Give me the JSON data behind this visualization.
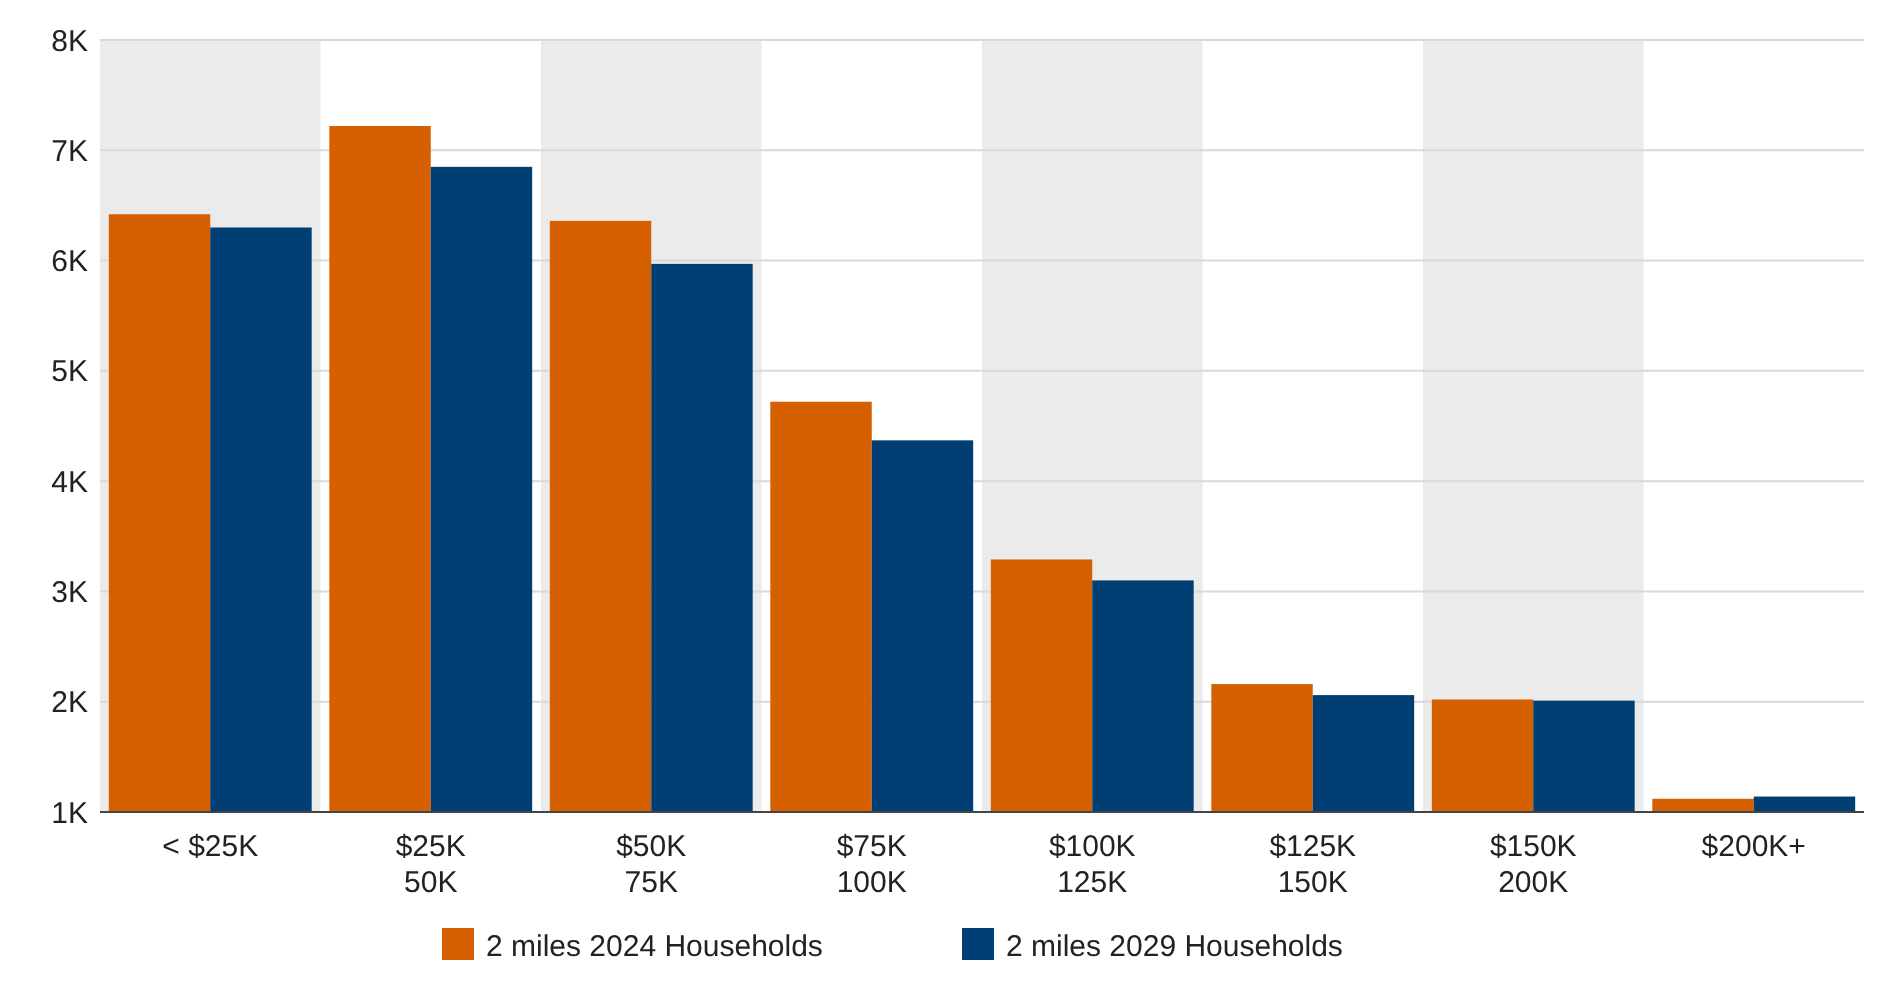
{
  "chart_data": {
    "type": "bar",
    "categories": [
      "< $25K",
      "$25K\n50K",
      "$50K\n75K",
      "$75K\n100K",
      "$100K\n125K",
      "$125K\n150K",
      "$150K\n200K",
      "$200K+"
    ],
    "series": [
      {
        "name": "2 miles 2024 Households",
        "color": "#d65f00",
        "values": [
          6420,
          7220,
          6360,
          4720,
          3290,
          2160,
          2020,
          1120
        ]
      },
      {
        "name": "2 miles 2029 Households",
        "color": "#003f73",
        "values": [
          6300,
          6850,
          5970,
          4370,
          3100,
          2060,
          2010,
          1140
        ]
      }
    ],
    "ylim": [
      1000,
      8000
    ],
    "yticks": [
      {
        "value": 1000,
        "label": "1K"
      },
      {
        "value": 2000,
        "label": "2K"
      },
      {
        "value": 3000,
        "label": "3K"
      },
      {
        "value": 4000,
        "label": "4K"
      },
      {
        "value": 5000,
        "label": "5K"
      },
      {
        "value": 6000,
        "label": "6K"
      },
      {
        "value": 7000,
        "label": "7K"
      },
      {
        "value": 8000,
        "label": "8K"
      }
    ],
    "bands": [
      {
        "axis": "x",
        "from": "< $25K",
        "to": "< $25K",
        "color": "#ebebeb"
      },
      {
        "axis": "x",
        "from": "$50K\n75K",
        "to": "$50K\n75K",
        "color": "#ebebeb"
      },
      {
        "axis": "x",
        "from": "$100K\n125K",
        "to": "$100K\n125K",
        "color": "#ebebeb"
      },
      {
        "axis": "x",
        "from": "$150K\n200K",
        "to": "$150K\n200K",
        "color": "#ebebeb"
      }
    ],
    "grid": "y",
    "legend": "bottom"
  }
}
